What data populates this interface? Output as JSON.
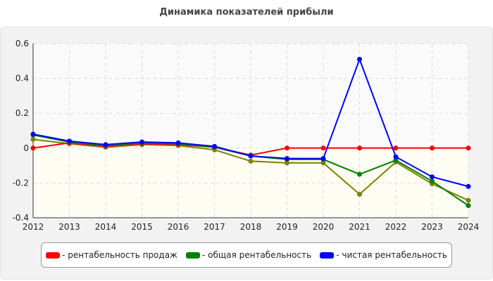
{
  "chart_data": {
    "type": "line",
    "title": "Динамика показателей прибыли",
    "x": [
      2012,
      2013,
      2014,
      2015,
      2016,
      2017,
      2018,
      2019,
      2020,
      2021,
      2022,
      2023,
      2024
    ],
    "ylim": [
      -0.4,
      0.6
    ],
    "yticks": [
      "0.6",
      "0.4",
      "0.2",
      "0",
      "-0.2",
      "-0.4"
    ],
    "grid": true,
    "legend_position": "bottom",
    "series": [
      {
        "name": "- рентабельность продаж",
        "color": "#ff0000",
        "values": [
          0,
          0.03,
          0.01,
          0.025,
          0.02,
          0.005,
          -0.04,
          0,
          0,
          0,
          0,
          0,
          0
        ]
      },
      {
        "name": "- общая рентабельность",
        "color": "#008000",
        "values": [
          0.075,
          0.035,
          0.015,
          0.03,
          0.025,
          0.005,
          -0.045,
          -0.065,
          -0.065,
          -0.15,
          -0.07,
          -0.19,
          -0.33
        ]
      },
      {
        "name": "- чистая рентабельность",
        "color": "#0000ff",
        "values": [
          0.08,
          0.04,
          0.02,
          0.035,
          0.03,
          0.01,
          -0.045,
          -0.06,
          -0.06,
          0.51,
          -0.05,
          -0.165,
          -0.22
        ]
      },
      {
        "color": "#808000",
        "values": [
          0.05,
          0.025,
          0.005,
          0.02,
          0.015,
          -0.01,
          -0.075,
          -0.085,
          -0.085,
          -0.265,
          -0.08,
          -0.205,
          -0.3
        ]
      }
    ]
  }
}
